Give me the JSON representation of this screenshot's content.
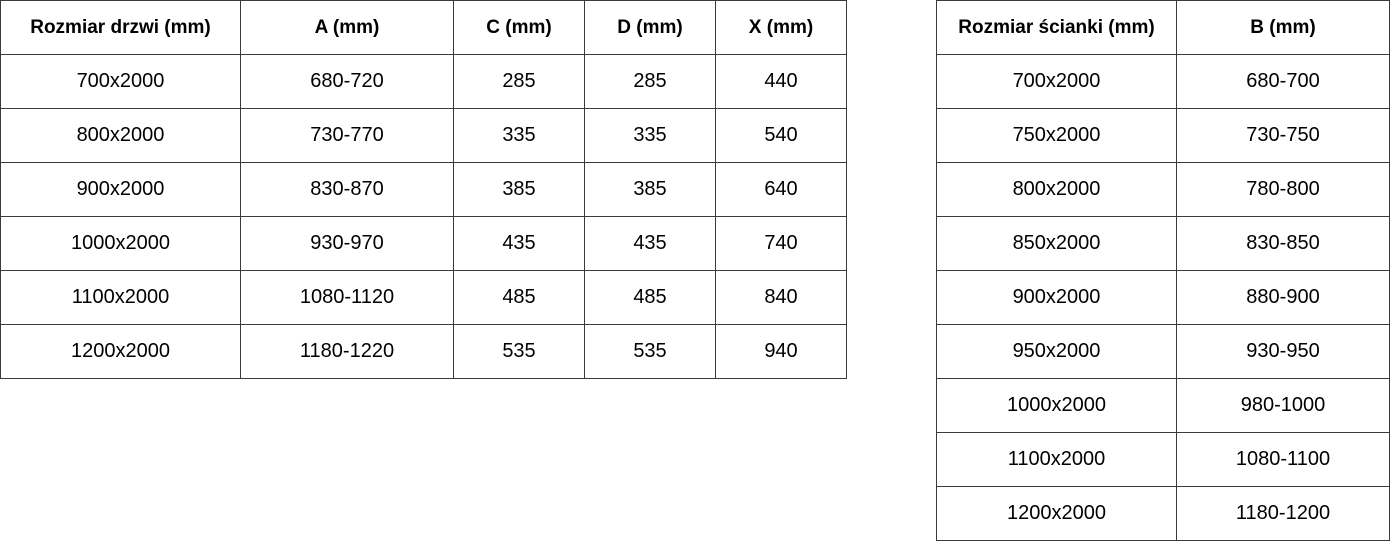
{
  "doors_table": {
    "headers": [
      "Rozmiar drzwi (mm)",
      "A (mm)",
      "C (mm)",
      "D (mm)",
      "X (mm)"
    ],
    "rows": [
      [
        "700x2000",
        "680-720",
        "285",
        "285",
        "440"
      ],
      [
        "800x2000",
        "730-770",
        "335",
        "335",
        "540"
      ],
      [
        "900x2000",
        "830-870",
        "385",
        "385",
        "640"
      ],
      [
        "1000x2000",
        "930-970",
        "435",
        "435",
        "740"
      ],
      [
        "1100x2000",
        "1080-1120",
        "485",
        "485",
        "840"
      ],
      [
        "1200x2000",
        "1180-1220",
        "535",
        "535",
        "940"
      ]
    ]
  },
  "wall_table": {
    "headers": [
      "Rozmiar ścianki (mm)",
      "B (mm)"
    ],
    "rows": [
      [
        "700x2000",
        "680-700"
      ],
      [
        "750x2000",
        "730-750"
      ],
      [
        "800x2000",
        "780-800"
      ],
      [
        "850x2000",
        "830-850"
      ],
      [
        "900x2000",
        "880-900"
      ],
      [
        "950x2000",
        "930-950"
      ],
      [
        "1000x2000",
        "980-1000"
      ],
      [
        "1100x2000",
        "1080-1100"
      ],
      [
        "1200x2000",
        "1180-1200"
      ]
    ]
  }
}
